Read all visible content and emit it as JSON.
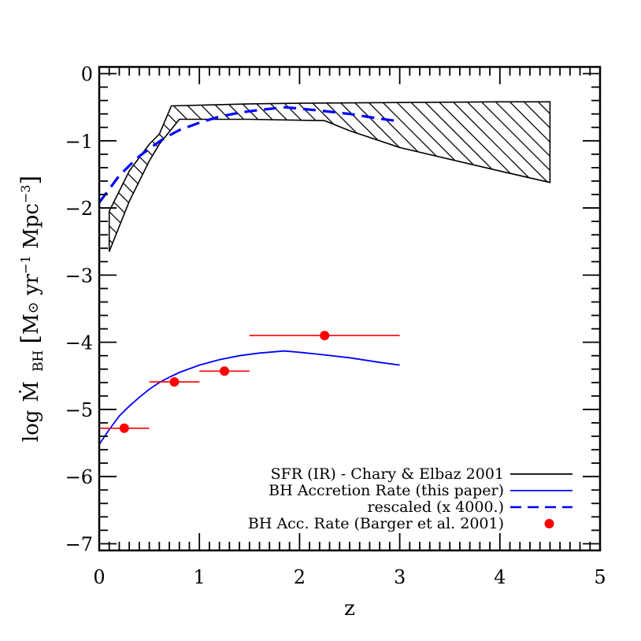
{
  "chart_data": {
    "type": "line",
    "xlabel": "z",
    "ylabel": {
      "prefix": "log",
      "m_symbol": "Ṁ",
      "subscript": "BH",
      "bracket_open": "[",
      "units_main": "M",
      "sun_symbol": "⊙",
      "units_yr": " yr",
      "yr_exp": "−1",
      "units_mpc": " Mpc",
      "mpc_exp": "−3",
      "bracket_close": "]"
    },
    "xlim": [
      0,
      5
    ],
    "ylim": [
      -7.1,
      0.1
    ],
    "x_ticks": [
      0,
      1,
      2,
      3,
      4,
      5
    ],
    "x_tick_labels": [
      "0",
      "1",
      "2",
      "3",
      "4",
      "5"
    ],
    "y_ticks": [
      0,
      -1,
      -2,
      -3,
      -4,
      -5,
      -6,
      -7
    ],
    "y_tick_labels": [
      "0",
      "−1",
      "−2",
      "−3",
      "−4",
      "−5",
      "−6",
      "−7"
    ],
    "x_minor_step": 0.1,
    "y_minor_step": 0.2,
    "legend_position": "bottom-right",
    "series": [
      {
        "name": "SFR (IR) - Chary & Elbaz 2001",
        "kind": "hatched-band",
        "color": "#000000",
        "upper": [
          [
            0.1,
            -2.05
          ],
          [
            0.3,
            -1.45
          ],
          [
            0.5,
            -1.05
          ],
          [
            0.6,
            -0.9
          ],
          [
            0.72,
            -0.48
          ],
          [
            1.0,
            -0.47
          ],
          [
            1.5,
            -0.45
          ],
          [
            2.0,
            -0.44
          ],
          [
            3.0,
            -0.43
          ],
          [
            4.0,
            -0.42
          ],
          [
            4.5,
            -0.42
          ]
        ],
        "lower": [
          [
            0.1,
            -2.65
          ],
          [
            0.3,
            -1.9
          ],
          [
            0.5,
            -1.3
          ],
          [
            0.6,
            -1.05
          ],
          [
            0.8,
            -0.68
          ],
          [
            1.5,
            -0.68
          ],
          [
            2.25,
            -0.7
          ],
          [
            2.5,
            -0.85
          ],
          [
            3.0,
            -1.1
          ],
          [
            4.0,
            -1.45
          ],
          [
            4.5,
            -1.62
          ]
        ]
      },
      {
        "name": "BH Accretion Rate (this paper)",
        "kind": "solid-line",
        "color": "#0000ff",
        "points": [
          [
            0.0,
            -5.52
          ],
          [
            0.1,
            -5.3
          ],
          [
            0.2,
            -5.1
          ],
          [
            0.3,
            -4.95
          ],
          [
            0.4,
            -4.82
          ],
          [
            0.5,
            -4.7
          ],
          [
            0.6,
            -4.6
          ],
          [
            0.7,
            -4.52
          ],
          [
            0.8,
            -4.45
          ],
          [
            1.0,
            -4.34
          ],
          [
            1.2,
            -4.26
          ],
          [
            1.4,
            -4.2
          ],
          [
            1.6,
            -4.16
          ],
          [
            1.85,
            -4.13
          ],
          [
            2.0,
            -4.15
          ],
          [
            2.2,
            -4.18
          ],
          [
            2.5,
            -4.23
          ],
          [
            2.8,
            -4.3
          ],
          [
            3.0,
            -4.34
          ]
        ]
      },
      {
        "name": "rescaled (x  4000.)",
        "kind": "dashed-line",
        "color": "#0000ff",
        "points": [
          [
            0.0,
            -1.92
          ],
          [
            0.1,
            -1.72
          ],
          [
            0.2,
            -1.52
          ],
          [
            0.3,
            -1.37
          ],
          [
            0.4,
            -1.23
          ],
          [
            0.5,
            -1.12
          ],
          [
            0.6,
            -1.01
          ],
          [
            0.7,
            -0.92
          ],
          [
            0.8,
            -0.84
          ],
          [
            1.0,
            -0.73
          ],
          [
            1.2,
            -0.64
          ],
          [
            1.4,
            -0.58
          ],
          [
            1.6,
            -0.54
          ],
          [
            1.85,
            -0.5
          ],
          [
            2.0,
            -0.52
          ],
          [
            2.2,
            -0.55
          ],
          [
            2.5,
            -0.6
          ],
          [
            2.8,
            -0.67
          ],
          [
            3.0,
            -0.71
          ]
        ]
      },
      {
        "name": "BH Acc. Rate (Barger et al. 2001)",
        "kind": "points-with-xerr",
        "color": "#ff0000",
        "points": [
          {
            "x": 0.25,
            "y": -5.28,
            "xmin": 0.0,
            "xmax": 0.5
          },
          {
            "x": 0.75,
            "y": -4.59,
            "xmin": 0.5,
            "xmax": 1.0
          },
          {
            "x": 1.25,
            "y": -4.43,
            "xmin": 1.0,
            "xmax": 1.5
          },
          {
            "x": 2.25,
            "y": -3.9,
            "xmin": 1.5,
            "xmax": 3.0
          }
        ]
      }
    ]
  }
}
